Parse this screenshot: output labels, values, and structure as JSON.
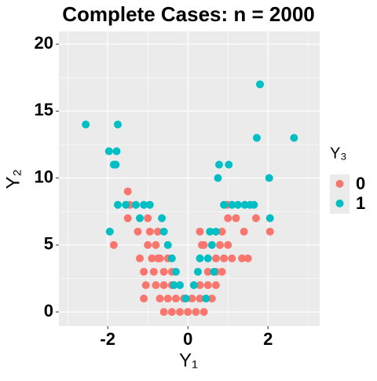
{
  "chart_data": {
    "type": "scatter",
    "title": "Complete Cases: n = 2000",
    "x_label": "Y₁",
    "y_label": "Y₂",
    "legend_title": "Y₃",
    "xlim": [
      -3.22,
      3.29
    ],
    "ylim": [
      -1.05,
      20.95
    ],
    "xticks": [
      -2,
      0,
      2
    ],
    "yticks": [
      0,
      5,
      10,
      15,
      20
    ],
    "x_minor_grid": [
      -3,
      -1,
      1,
      3
    ],
    "y_minor_grid": [
      2.5,
      7.5,
      12.5,
      17.5
    ],
    "grid": true,
    "legend_position": "right",
    "series": [
      {
        "name": "0",
        "color": "#F8766D",
        "x": [
          -1.85,
          -1.5,
          -1.5,
          -1.45,
          -1.25,
          -1.2,
          -1.0,
          -1.0,
          -0.95,
          -0.85,
          -0.75,
          -1.1,
          -1.05,
          -1.1,
          -0.8,
          -0.7,
          -0.6,
          -0.4,
          -0.2,
          0,
          0.2,
          0.4,
          -0.5,
          -0.3,
          -0.1,
          0.1,
          0.3,
          0.6,
          -0.6,
          -0.4,
          0.3,
          0.5,
          0.7,
          -0.6,
          -0.4,
          0.5,
          0.7,
          0.85,
          -0.7,
          -0.5,
          0.7,
          0.9,
          1.35,
          1.5,
          -0.8,
          0.4,
          0.8,
          1.0,
          -0.75,
          0.35,
          0.85,
          1.4,
          2.05,
          1.0,
          1.2,
          0.98,
          1.7,
          0.3,
          -0.9,
          1.1
        ],
        "values": [
          5,
          9,
          7,
          8,
          6,
          4,
          5,
          7,
          6,
          3,
          4,
          3,
          2,
          1,
          2,
          1,
          0,
          0,
          0,
          0,
          0,
          0,
          1,
          1,
          1,
          1,
          1,
          1,
          2,
          2,
          2,
          2,
          2,
          3,
          3,
          3,
          3,
          3,
          4,
          4,
          4,
          4,
          4,
          4,
          5,
          5,
          5,
          5,
          6,
          5,
          6,
          6,
          6,
          7,
          7,
          8,
          7,
          6,
          4,
          4
        ]
      },
      {
        "name": "1",
        "color": "#00BFC4",
        "x": [
          -2.55,
          -1.97,
          -1.78,
          -1.75,
          -1.85,
          -1.8,
          -1.95,
          -1.75,
          -1.55,
          -1.3,
          -1.1,
          -0.95,
          -1.2,
          -0.65,
          -0.6,
          -0.5,
          -0.4,
          -0.3,
          -0.2,
          -0.35,
          0.15,
          0.25,
          0.5,
          0.6,
          0.55,
          0.7,
          0.75,
          0.78,
          0.9,
          1.02,
          1.1,
          1.25,
          1.42,
          1.55,
          1.65,
          1.72,
          1.8,
          2.03,
          2.05,
          2.65,
          0.45,
          -0.05,
          0.3,
          0.65
        ],
        "values": [
          14,
          12,
          12,
          14,
          11,
          11,
          6,
          8,
          8,
          8,
          8,
          8,
          7,
          7,
          6,
          5,
          4,
          3,
          2,
          2,
          2,
          3,
          4,
          5,
          6,
          6,
          10,
          11,
          8,
          11,
          8,
          8,
          8,
          8,
          8,
          13,
          17,
          10,
          7,
          13,
          1,
          1,
          4,
          3
        ]
      }
    ]
  }
}
